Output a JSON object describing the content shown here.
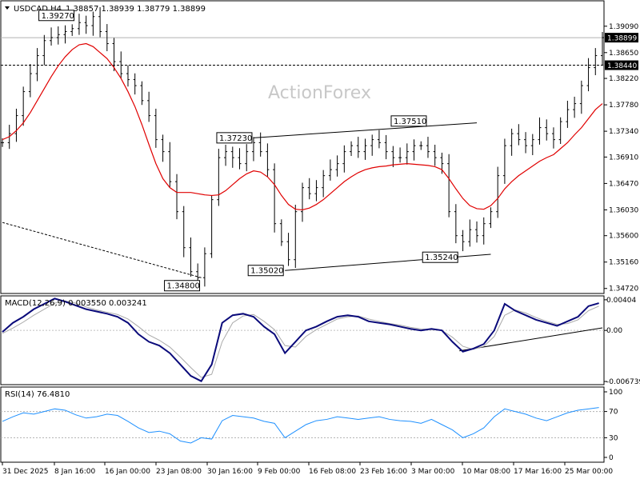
{
  "chart_data": [
    {
      "type": "line",
      "panel": "price",
      "title": "USDCAD,H4",
      "ohlc": "1.38857 1.38939 1.38779 1.38899",
      "watermark": "ActionForex",
      "x_ticks": [
        "31 Dec 2025",
        "8 Jan 16:00",
        "16 Jan 00:00",
        "23 Jan 08:00",
        "30 Jan 16:00",
        "9 Feb 00:00",
        "16 Feb 08:00",
        "23 Feb 16:00",
        "3 Mar 00:00",
        "10 Mar 08:00",
        "17 Mar 16:00",
        "25 Mar 00:00"
      ],
      "y_ticks": [
        "1.39090",
        "1.38650",
        "1.38220",
        "1.37780",
        "1.37340",
        "1.36910",
        "1.36470",
        "1.36030",
        "1.35600",
        "1.35160",
        "1.34720"
      ],
      "ylim": [
        1.3465,
        1.395
      ],
      "current_price_label": "1.38899",
      "current_price": 1.38899,
      "level_label": "1.38440",
      "level": 1.3844,
      "annotations": [
        {
          "text": "1.39270",
          "x": 21,
          "y": 1.3927
        },
        {
          "text": "1.34800",
          "x": 57,
          "y": 1.348
        },
        {
          "text": "1.37230",
          "x": 72,
          "y": 1.3723
        },
        {
          "text": "1.35020",
          "x": 81,
          "y": 1.3502
        },
        {
          "text": "1.37510",
          "x": 122,
          "y": 1.3751
        },
        {
          "text": "1.35240",
          "x": 131,
          "y": 1.3524
        }
      ],
      "trendlines": [
        {
          "x": [
            72,
            136
          ],
          "y": [
            1.3723,
            1.3748
          ],
          "style": "solid"
        },
        {
          "x": [
            81,
            140
          ],
          "y": [
            1.3502,
            1.3529
          ],
          "style": "solid"
        },
        {
          "x": [
            0,
            57
          ],
          "y": [
            1.3582,
            1.349
          ],
          "style": "dashed"
        }
      ],
      "x": [
        0,
        2,
        4,
        6,
        8,
        10,
        12,
        14,
        16,
        18,
        20,
        22,
        24,
        26,
        28,
        30,
        32,
        34,
        36,
        38,
        40,
        42,
        44,
        46,
        48,
        50,
        52,
        54,
        56,
        58,
        60,
        62,
        64,
        66,
        68,
        70,
        72,
        74,
        76,
        78,
        80,
        82,
        84,
        86,
        88,
        90,
        92,
        94,
        96,
        98,
        100,
        102,
        104,
        106,
        108,
        110,
        112,
        114,
        116,
        118,
        120,
        122,
        124,
        126,
        128,
        130,
        132,
        134,
        136,
        138,
        140,
        142,
        144,
        146,
        148,
        150,
        152,
        154,
        156,
        158,
        160,
        162,
        164,
        166,
        168,
        170,
        172
      ],
      "series": [
        {
          "name": "Close",
          "values": [
            1.3715,
            1.373,
            1.376,
            1.38,
            1.383,
            1.386,
            1.3885,
            1.389,
            1.3895,
            1.39,
            1.3905,
            1.3915,
            1.391,
            1.3925,
            1.39,
            1.388,
            1.385,
            1.383,
            1.382,
            1.381,
            1.3785,
            1.376,
            1.372,
            1.37,
            1.365,
            1.36,
            1.354,
            1.35,
            1.349,
            1.353,
            1.362,
            1.369,
            1.37,
            1.369,
            1.368,
            1.37,
            1.3715,
            1.37,
            1.367,
            1.358,
            1.355,
            1.352,
            1.36,
            1.364,
            1.363,
            1.364,
            1.366,
            1.367,
            1.368,
            1.37,
            1.371,
            1.37,
            1.371,
            1.372,
            1.3715,
            1.37,
            1.369,
            1.369,
            1.37,
            1.371,
            1.371,
            1.37,
            1.369,
            1.368,
            1.36,
            1.356,
            1.355,
            1.357,
            1.356,
            1.358,
            1.36,
            1.366,
            1.371,
            1.373,
            1.372,
            1.371,
            1.372,
            1.374,
            1.373,
            1.372,
            1.375,
            1.377,
            1.378,
            1.381,
            1.384,
            1.386,
            1.389
          ]
        },
        {
          "name": "MA",
          "values": [
            1.372,
            1.3725,
            1.3735,
            1.3748,
            1.3765,
            1.3785,
            1.3805,
            1.3825,
            1.3843,
            1.3858,
            1.387,
            1.3878,
            1.388,
            1.3875,
            1.3865,
            1.3855,
            1.384,
            1.3822,
            1.38,
            1.3775,
            1.3745,
            1.3712,
            1.368,
            1.3655,
            1.364,
            1.3632,
            1.3632,
            1.3632,
            1.363,
            1.3628,
            1.3627,
            1.3628,
            1.3635,
            1.3645,
            1.3655,
            1.3663,
            1.3668,
            1.3666,
            1.3658,
            1.3645,
            1.3627,
            1.3612,
            1.3604,
            1.3603,
            1.3606,
            1.3612,
            1.362,
            1.363,
            1.364,
            1.365,
            1.3658,
            1.3665,
            1.367,
            1.3673,
            1.3675,
            1.3676,
            1.3678,
            1.3679,
            1.368,
            1.3679,
            1.3678,
            1.3677,
            1.3675,
            1.367,
            1.3655,
            1.3638,
            1.3622,
            1.361,
            1.3605,
            1.3604,
            1.361,
            1.3622,
            1.3638,
            1.365,
            1.366,
            1.3668,
            1.3676,
            1.3684,
            1.369,
            1.3695,
            1.3705,
            1.3715,
            1.3728,
            1.374,
            1.3755,
            1.377,
            1.378
          ]
        }
      ]
    },
    {
      "type": "line",
      "panel": "macd",
      "title": "MACD(12,26,9) 0.003550 0.003241",
      "y_ticks": [
        "0.00404",
        "0.00",
        "-0.006739"
      ],
      "ylim": [
        -0.00705,
        0.00445
      ],
      "trendline": {
        "x": [
          131,
          172
        ],
        "y": [
          -0.0027,
          0.00034
        ]
      },
      "x": [
        0,
        3,
        6,
        9,
        12,
        15,
        18,
        21,
        24,
        27,
        30,
        33,
        36,
        39,
        42,
        45,
        48,
        51,
        54,
        57,
        60,
        63,
        66,
        69,
        72,
        75,
        78,
        81,
        84,
        87,
        90,
        93,
        96,
        99,
        102,
        105,
        108,
        111,
        114,
        117,
        120,
        123,
        126,
        129,
        132,
        135,
        138,
        141,
        144,
        147,
        150,
        153,
        156,
        159,
        162,
        165,
        168,
        171
      ],
      "series": [
        {
          "name": "MACD",
          "values": [
            -0.0002,
            0.001,
            0.0018,
            0.0028,
            0.0035,
            0.0042,
            0.0038,
            0.0033,
            0.0028,
            0.0025,
            0.0022,
            0.0018,
            0.001,
            -0.0005,
            -0.0015,
            -0.002,
            -0.003,
            -0.0045,
            -0.006,
            -0.0067,
            -0.0045,
            0.001,
            0.002,
            0.0022,
            0.0018,
            0.0005,
            -0.0005,
            -0.003,
            -0.0015,
            0.0,
            0.0005,
            0.0012,
            0.0018,
            0.002,
            0.0018,
            0.0012,
            0.001,
            0.0008,
            0.0005,
            0.0002,
            0.0,
            0.0002,
            0.0,
            -0.0015,
            -0.0028,
            -0.0024,
            -0.0018,
            0.0,
            0.0035,
            0.0026,
            0.002,
            0.0014,
            0.001,
            0.0006,
            0.0012,
            0.0018,
            0.0032,
            0.0036
          ]
        },
        {
          "name": "Signal",
          "values": [
            -0.0004,
            0.0003,
            0.0011,
            0.002,
            0.0028,
            0.0036,
            0.0039,
            0.0036,
            0.0031,
            0.0027,
            0.0024,
            0.0021,
            0.0015,
            0.0005,
            -0.0006,
            -0.0013,
            -0.0022,
            -0.0035,
            -0.0049,
            -0.0062,
            -0.0058,
            -0.0015,
            0.001,
            0.0019,
            0.0021,
            0.0012,
            0.0001,
            -0.002,
            -0.0022,
            -0.0008,
            0.0001,
            0.0008,
            0.0015,
            0.0018,
            0.0019,
            0.0015,
            0.0012,
            0.0009,
            0.0007,
            0.0004,
            0.0002,
            0.0001,
            0.0,
            -0.0009,
            -0.0021,
            -0.0025,
            -0.0021,
            -0.0008,
            0.002,
            0.0027,
            0.0023,
            0.0017,
            0.0012,
            0.0008,
            0.0009,
            0.0014,
            0.0026,
            0.0032
          ]
        }
      ]
    },
    {
      "type": "line",
      "panel": "rsi",
      "title": "RSI(14) 76.4810",
      "y_ticks": [
        "100",
        "70",
        "30",
        "0"
      ],
      "ylim": [
        0,
        100
      ],
      "levels": [
        70,
        30
      ],
      "x": [
        0,
        3,
        6,
        9,
        12,
        15,
        18,
        21,
        24,
        27,
        30,
        33,
        36,
        39,
        42,
        45,
        48,
        51,
        54,
        57,
        60,
        63,
        66,
        69,
        72,
        75,
        78,
        81,
        84,
        87,
        90,
        93,
        96,
        99,
        102,
        105,
        108,
        111,
        114,
        117,
        120,
        123,
        126,
        129,
        132,
        135,
        138,
        141,
        144,
        147,
        150,
        153,
        156,
        159,
        162,
        165,
        168,
        171
      ],
      "series": [
        {
          "name": "RSI",
          "values": [
            55,
            62,
            68,
            66,
            70,
            74,
            72,
            65,
            60,
            62,
            66,
            64,
            55,
            45,
            38,
            40,
            36,
            25,
            22,
            30,
            28,
            56,
            64,
            62,
            60,
            55,
            52,
            30,
            40,
            50,
            56,
            58,
            62,
            60,
            58,
            60,
            62,
            58,
            56,
            55,
            52,
            58,
            50,
            42,
            30,
            36,
            45,
            62,
            74,
            70,
            66,
            60,
            56,
            62,
            68,
            72,
            74,
            76
          ]
        }
      ]
    }
  ]
}
